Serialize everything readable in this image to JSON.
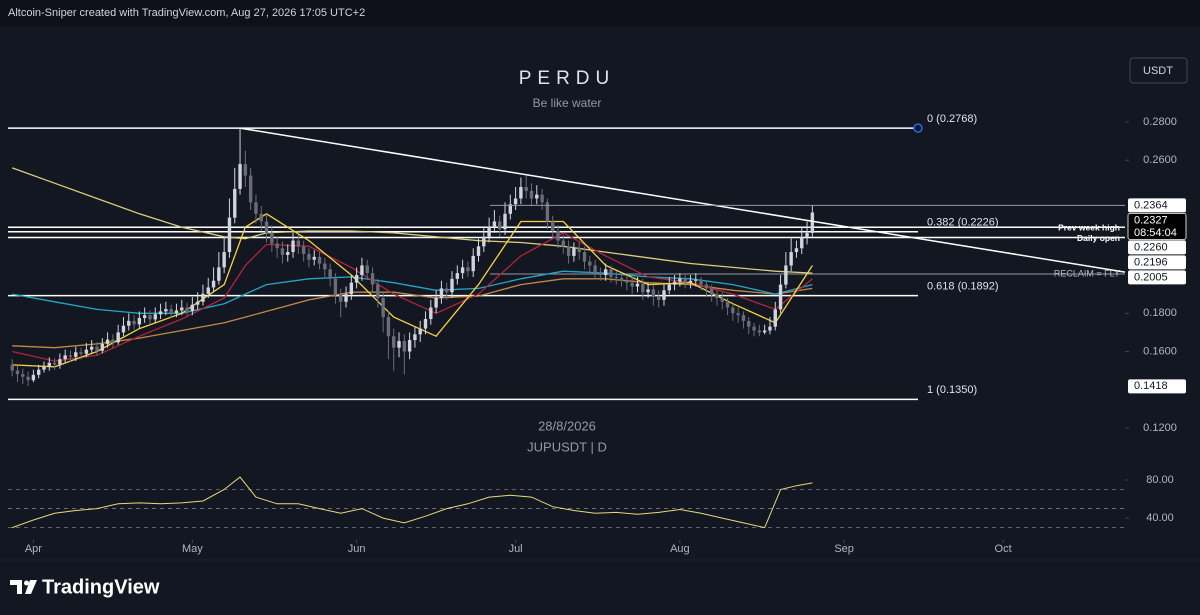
{
  "chart_data": {
    "type": "candlestick",
    "header": "Altcoin-Sniper created with TradingView.com, Aug 27, 2026 17:05 UTC+2",
    "currency_button": "USDT",
    "title": "PERDU",
    "subtitle": "Be like water",
    "date_watermark": "28/8/2026",
    "symbol": "JUPUSDT | D",
    "brand": "TradingView",
    "up_color": "#d1d4dc",
    "down_color": "#6a6d78",
    "xlim": [
      -2.3,
      210
    ],
    "ylim": [
      0.1059,
      0.3281
    ],
    "xticks": [
      {
        "value": 4,
        "label": "Apr"
      },
      {
        "value": 34,
        "label": "May"
      },
      {
        "value": 65,
        "label": "Jun"
      },
      {
        "value": 95,
        "label": "Jul"
      },
      {
        "value": 126,
        "label": "Aug"
      },
      {
        "value": 157,
        "label": "Sep"
      },
      {
        "value": 187,
        "label": "Oct"
      }
    ],
    "yticks": [
      {
        "value": 0.28,
        "label": "0.2800"
      },
      {
        "value": 0.26,
        "label": "0.2600"
      },
      {
        "value": 0.18,
        "label": "0.1800"
      },
      {
        "value": 0.16,
        "label": "0.1600"
      },
      {
        "value": 0.12,
        "label": "0.1200"
      }
    ],
    "open": [
      0.153,
      0.15,
      0.1482,
      0.1468,
      0.145,
      0.1478,
      0.1505,
      0.152,
      0.1541,
      0.1532,
      0.156,
      0.158,
      0.1572,
      0.1596,
      0.1588,
      0.161,
      0.1625,
      0.1604,
      0.164,
      0.1662,
      0.1648,
      0.17,
      0.1735,
      0.176,
      0.1742,
      0.1775,
      0.179,
      0.1768,
      0.1795,
      0.181,
      0.1822,
      0.1801,
      0.1815,
      0.183,
      0.1812,
      0.1845,
      0.186,
      0.1902,
      0.1935,
      0.197,
      0.204,
      0.212,
      0.23,
      0.245,
      0.258,
      0.252,
      0.238,
      0.232,
      0.228,
      0.222,
      0.2165,
      0.214,
      0.2105,
      0.212,
      0.218,
      0.215,
      0.211,
      0.208,
      0.2095,
      0.206,
      0.203,
      0.198,
      0.19,
      0.186,
      0.19,
      0.196,
      0.2,
      0.205,
      0.201,
      0.195,
      0.188,
      0.178,
      0.168,
      0.162,
      0.1655,
      0.16,
      0.166,
      0.169,
      0.172,
      0.177,
      0.183,
      0.188,
      0.193,
      0.191,
      0.198,
      0.201,
      0.204,
      0.202,
      0.21,
      0.215,
      0.22,
      0.225,
      0.228,
      0.224,
      0.232,
      0.237,
      0.24,
      0.246,
      0.244,
      0.24,
      0.242,
      0.238,
      0.228,
      0.223,
      0.218,
      0.215,
      0.21,
      0.214,
      0.212,
      0.207,
      0.205,
      0.201,
      0.2,
      0.203,
      0.199,
      0.1985,
      0.197,
      0.196,
      0.194,
      0.1955,
      0.191,
      0.1925,
      0.189,
      0.187,
      0.192,
      0.195,
      0.1965,
      0.198,
      0.196,
      0.197,
      0.1975,
      0.195,
      0.193,
      0.19,
      0.188,
      0.186,
      0.183,
      0.18,
      0.179,
      0.176,
      0.173,
      0.171,
      0.17,
      0.171,
      0.173,
      0.182,
      0.195,
      0.205,
      0.212,
      0.214,
      0.22,
      0.222
    ],
    "high": [
      0.156,
      0.1525,
      0.151,
      0.1495,
      0.1505,
      0.153,
      0.1548,
      0.157,
      0.1565,
      0.159,
      0.161,
      0.1605,
      0.1625,
      0.162,
      0.1645,
      0.166,
      0.165,
      0.167,
      0.17,
      0.169,
      0.174,
      0.178,
      0.18,
      0.179,
      0.181,
      0.183,
      0.1815,
      0.183,
      0.185,
      0.186,
      0.1845,
      0.185,
      0.187,
      0.1855,
      0.1885,
      0.191,
      0.195,
      0.1985,
      0.204,
      0.212,
      0.22,
      0.24,
      0.256,
      0.2768,
      0.265,
      0.256,
      0.242,
      0.236,
      0.232,
      0.226,
      0.22,
      0.2175,
      0.216,
      0.222,
      0.221,
      0.218,
      0.214,
      0.213,
      0.212,
      0.209,
      0.206,
      0.201,
      0.193,
      0.194,
      0.2,
      0.204,
      0.209,
      0.208,
      0.204,
      0.198,
      0.191,
      0.181,
      0.172,
      0.17,
      0.169,
      0.17,
      0.173,
      0.176,
      0.181,
      0.187,
      0.192,
      0.197,
      0.196,
      0.202,
      0.205,
      0.208,
      0.207,
      0.214,
      0.219,
      0.225,
      0.23,
      0.234,
      0.231,
      0.238,
      0.242,
      0.246,
      0.251,
      0.252,
      0.248,
      0.247,
      0.245,
      0.24,
      0.231,
      0.226,
      0.221,
      0.218,
      0.217,
      0.217,
      0.215,
      0.21,
      0.208,
      0.204,
      0.206,
      0.205,
      0.202,
      0.201,
      0.2,
      0.199,
      0.199,
      0.198,
      0.196,
      0.195,
      0.192,
      0.195,
      0.199,
      0.2,
      0.201,
      0.2,
      0.2,
      0.201,
      0.199,
      0.197,
      0.195,
      0.192,
      0.191,
      0.188,
      0.185,
      0.183,
      0.181,
      0.178,
      0.175,
      0.174,
      0.174,
      0.178,
      0.186,
      0.2,
      0.212,
      0.22,
      0.218,
      0.225,
      0.228,
      0.2364
    ],
    "low": [
      0.147,
      0.144,
      0.143,
      0.142,
      0.144,
      0.146,
      0.149,
      0.15,
      0.1505,
      0.151,
      0.154,
      0.1545,
      0.155,
      0.156,
      0.157,
      0.159,
      0.158,
      0.159,
      0.162,
      0.162,
      0.1635,
      0.168,
      0.171,
      0.1715,
      0.172,
      0.175,
      0.174,
      0.175,
      0.177,
      0.179,
      0.1775,
      0.178,
      0.179,
      0.1785,
      0.179,
      0.182,
      0.184,
      0.188,
      0.191,
      0.195,
      0.201,
      0.209,
      0.227,
      0.242,
      0.246,
      0.234,
      0.227,
      0.223,
      0.217,
      0.212,
      0.209,
      0.206,
      0.207,
      0.209,
      0.211,
      0.207,
      0.204,
      0.205,
      0.203,
      0.199,
      0.194,
      0.185,
      0.178,
      0.183,
      0.187,
      0.193,
      0.197,
      0.198,
      0.191,
      0.183,
      0.17,
      0.156,
      0.15,
      0.157,
      0.148,
      0.156,
      0.162,
      0.165,
      0.169,
      0.174,
      0.18,
      0.185,
      0.187,
      0.188,
      0.195,
      0.198,
      0.199,
      0.199,
      0.207,
      0.212,
      0.217,
      0.222,
      0.22,
      0.221,
      0.229,
      0.234,
      0.237,
      0.24,
      0.236,
      0.237,
      0.234,
      0.224,
      0.219,
      0.214,
      0.211,
      0.206,
      0.207,
      0.208,
      0.203,
      0.201,
      0.198,
      0.197,
      0.197,
      0.196,
      0.195,
      0.194,
      0.192,
      0.19,
      0.191,
      0.187,
      0.188,
      0.184,
      0.183,
      0.184,
      0.19,
      0.192,
      0.194,
      0.193,
      0.193,
      0.194,
      0.192,
      0.189,
      0.186,
      0.184,
      0.182,
      0.179,
      0.176,
      0.175,
      0.172,
      0.169,
      0.168,
      0.168,
      0.169,
      0.169,
      0.171,
      0.18,
      0.193,
      0.202,
      0.209,
      0.211,
      0.216,
      0.22
    ],
    "close": [
      0.15,
      0.1482,
      0.1468,
      0.145,
      0.1478,
      0.1505,
      0.152,
      0.1541,
      0.1532,
      0.156,
      0.158,
      0.1572,
      0.1596,
      0.1588,
      0.161,
      0.1625,
      0.1604,
      0.164,
      0.1662,
      0.1648,
      0.17,
      0.1735,
      0.176,
      0.1742,
      0.1775,
      0.179,
      0.1768,
      0.1795,
      0.181,
      0.1822,
      0.1801,
      0.1815,
      0.183,
      0.1812,
      0.1845,
      0.186,
      0.1902,
      0.1935,
      0.197,
      0.204,
      0.212,
      0.23,
      0.245,
      0.258,
      0.252,
      0.238,
      0.232,
      0.228,
      0.222,
      0.2165,
      0.214,
      0.2105,
      0.212,
      0.218,
      0.215,
      0.211,
      0.208,
      0.2095,
      0.206,
      0.203,
      0.198,
      0.19,
      0.186,
      0.19,
      0.196,
      0.2,
      0.205,
      0.201,
      0.195,
      0.188,
      0.178,
      0.168,
      0.162,
      0.1655,
      0.16,
      0.166,
      0.169,
      0.172,
      0.177,
      0.183,
      0.188,
      0.193,
      0.191,
      0.198,
      0.201,
      0.204,
      0.202,
      0.21,
      0.215,
      0.22,
      0.225,
      0.228,
      0.224,
      0.232,
      0.237,
      0.24,
      0.246,
      0.244,
      0.24,
      0.242,
      0.238,
      0.228,
      0.223,
      0.218,
      0.215,
      0.21,
      0.214,
      0.212,
      0.207,
      0.205,
      0.201,
      0.2,
      0.203,
      0.199,
      0.1985,
      0.197,
      0.196,
      0.194,
      0.1955,
      0.191,
      0.1925,
      0.189,
      0.187,
      0.192,
      0.195,
      0.1965,
      0.198,
      0.196,
      0.197,
      0.1975,
      0.195,
      0.193,
      0.19,
      0.188,
      0.186,
      0.183,
      0.18,
      0.179,
      0.176,
      0.173,
      0.171,
      0.17,
      0.171,
      0.173,
      0.182,
      0.195,
      0.205,
      0.212,
      0.214,
      0.22,
      0.222,
      0.2327
    ],
    "overlay_x": [
      0,
      8,
      16,
      24,
      32,
      40,
      44,
      48,
      56,
      64,
      72,
      80,
      88,
      96,
      104,
      112,
      120,
      128,
      136,
      144,
      151
    ],
    "overlays": [
      {
        "color": "#d9cf7a",
        "values": [
          0.256,
          0.248,
          0.24,
          0.232,
          0.225,
          0.22,
          0.219,
          0.222,
          0.223,
          0.223,
          0.222,
          0.22,
          0.218,
          0.217,
          0.215,
          0.212,
          0.209,
          0.206,
          0.204,
          0.202,
          0.201
        ]
      },
      {
        "color": "#c08b45",
        "values": [
          0.163,
          0.162,
          0.164,
          0.167,
          0.171,
          0.175,
          0.178,
          0.181,
          0.187,
          0.191,
          0.191,
          0.188,
          0.189,
          0.195,
          0.198,
          0.198,
          0.196,
          0.195,
          0.192,
          0.19,
          0.193
        ]
      },
      {
        "color": "#22a7c7",
        "values": [
          0.19,
          0.186,
          0.182,
          0.18,
          0.18,
          0.185,
          0.19,
          0.195,
          0.198,
          0.199,
          0.196,
          0.192,
          0.193,
          0.198,
          0.202,
          0.201,
          0.199,
          0.198,
          0.195,
          0.19,
          0.195
        ]
      },
      {
        "color": "#b2243a",
        "values": [
          0.16,
          0.155,
          0.158,
          0.168,
          0.177,
          0.188,
          0.205,
          0.216,
          0.215,
          0.204,
          0.19,
          0.18,
          0.19,
          0.21,
          0.222,
          0.21,
          0.199,
          0.196,
          0.19,
          0.182,
          0.198
        ]
      },
      {
        "color": "#f7d23e",
        "values": [
          0.153,
          0.152,
          0.16,
          0.172,
          0.18,
          0.195,
          0.225,
          0.232,
          0.218,
          0.2,
          0.178,
          0.168,
          0.195,
          0.228,
          0.228,
          0.205,
          0.195,
          0.196,
          0.185,
          0.175,
          0.205
        ]
      }
    ],
    "trendline": {
      "x": [
        43,
        210
      ],
      "y": [
        0.2768,
        0.2015
      ],
      "color": "#ffffff"
    },
    "levels": [
      {
        "label": "0 (0.2768)",
        "value": 0.2768
      },
      {
        "label": "0.382 (0.2226)",
        "value": 0.2226
      },
      {
        "label": "0.618 (0.1892)",
        "value": 0.1892
      },
      {
        "label": "1 (0.1350)",
        "value": 0.135
      }
    ],
    "annotations": [
      {
        "label": "Prev week high",
        "value": 0.225
      },
      {
        "label": "Daily open",
        "value": 0.2196
      },
      {
        "label": "RECLAIM = FLY",
        "value": 0.2005
      }
    ],
    "price_labels": [
      {
        "value": 0.2364,
        "label": "0.2364"
      },
      {
        "value": 0.226,
        "label": "0.2260"
      },
      {
        "value": 0.2196,
        "label": "0.2196"
      },
      {
        "value": 0.2005,
        "label": "0.2005"
      },
      {
        "value": 0.1418,
        "label": "0.1418"
      }
    ],
    "current_price": {
      "value": 0.2327,
      "label": "0.2327",
      "countdown": "08:54:04"
    },
    "rsi": {
      "color": "#e6d97a",
      "ylim": [
        17,
        101
      ],
      "yticks": [
        {
          "value": 80,
          "label": "80.00"
        },
        {
          "value": 40,
          "label": "40.00"
        }
      ],
      "bands": [
        70,
        50,
        30
      ],
      "x": [
        0,
        4,
        8,
        12,
        16,
        20,
        24,
        28,
        32,
        36,
        40,
        43,
        46,
        50,
        54,
        58,
        62,
        66,
        70,
        74,
        78,
        82,
        86,
        90,
        94,
        98,
        102,
        106,
        110,
        114,
        118,
        122,
        126,
        130,
        134,
        138,
        142,
        145,
        148,
        151
      ],
      "values": [
        30,
        38,
        45,
        48,
        50,
        55,
        56,
        55,
        56,
        58,
        70,
        83,
        62,
        55,
        55,
        50,
        45,
        50,
        40,
        35,
        42,
        50,
        55,
        62,
        64,
        62,
        52,
        48,
        45,
        46,
        44,
        46,
        49,
        45,
        40,
        35,
        30,
        70,
        74,
        77
      ]
    }
  }
}
